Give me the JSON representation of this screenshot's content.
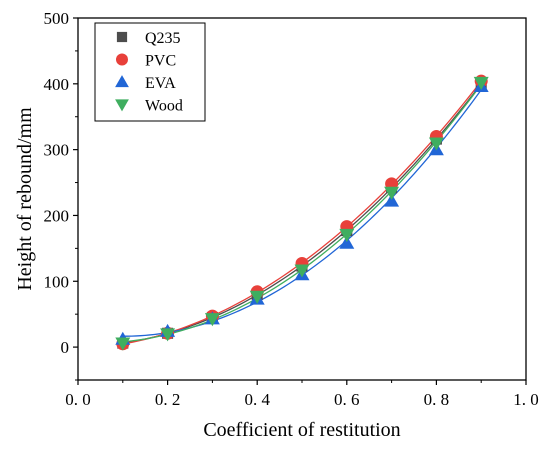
{
  "chart_data": {
    "type": "scatter",
    "xlabel": "Coefficient of restitution",
    "ylabel": "Height of rebound/mm",
    "xlim": [
      0.0,
      1.0
    ],
    "ylim": [
      -50,
      500
    ],
    "xticks": [
      0.0,
      0.2,
      0.4,
      0.6,
      0.8,
      1.0
    ],
    "xtick_labels": [
      "0. 0",
      "0. 2",
      "0. 4",
      "0. 6",
      "0. 8",
      "1. 0"
    ],
    "yticks": [
      0,
      100,
      200,
      300,
      400,
      500
    ],
    "ytick_labels": [
      "0",
      "100",
      "200",
      "300",
      "400",
      "500"
    ],
    "grid": false,
    "legend_position": "top-left",
    "x": [
      0.1,
      0.2,
      0.3,
      0.4,
      0.5,
      0.6,
      0.7,
      0.8,
      0.9
    ],
    "series": [
      {
        "name": "Q235",
        "marker": "square",
        "color": "#4d4d4d",
        "values": [
          6,
          21,
          45,
          80,
          123,
          177,
          242,
          316,
          400
        ]
      },
      {
        "name": "PVC",
        "marker": "circle",
        "color": "#e8403a",
        "values": [
          5,
          21,
          47,
          84,
          127,
          183,
          248,
          320,
          404
        ]
      },
      {
        "name": "EVA",
        "marker": "triangle-up",
        "color": "#2166d6",
        "values": [
          12,
          24,
          43,
          73,
          110,
          158,
          222,
          300,
          396
        ]
      },
      {
        "name": "Wood",
        "marker": "triangle-down",
        "color": "#3fae5f",
        "values": [
          6,
          20,
          43,
          77,
          117,
          171,
          235,
          310,
          402
        ]
      }
    ]
  }
}
